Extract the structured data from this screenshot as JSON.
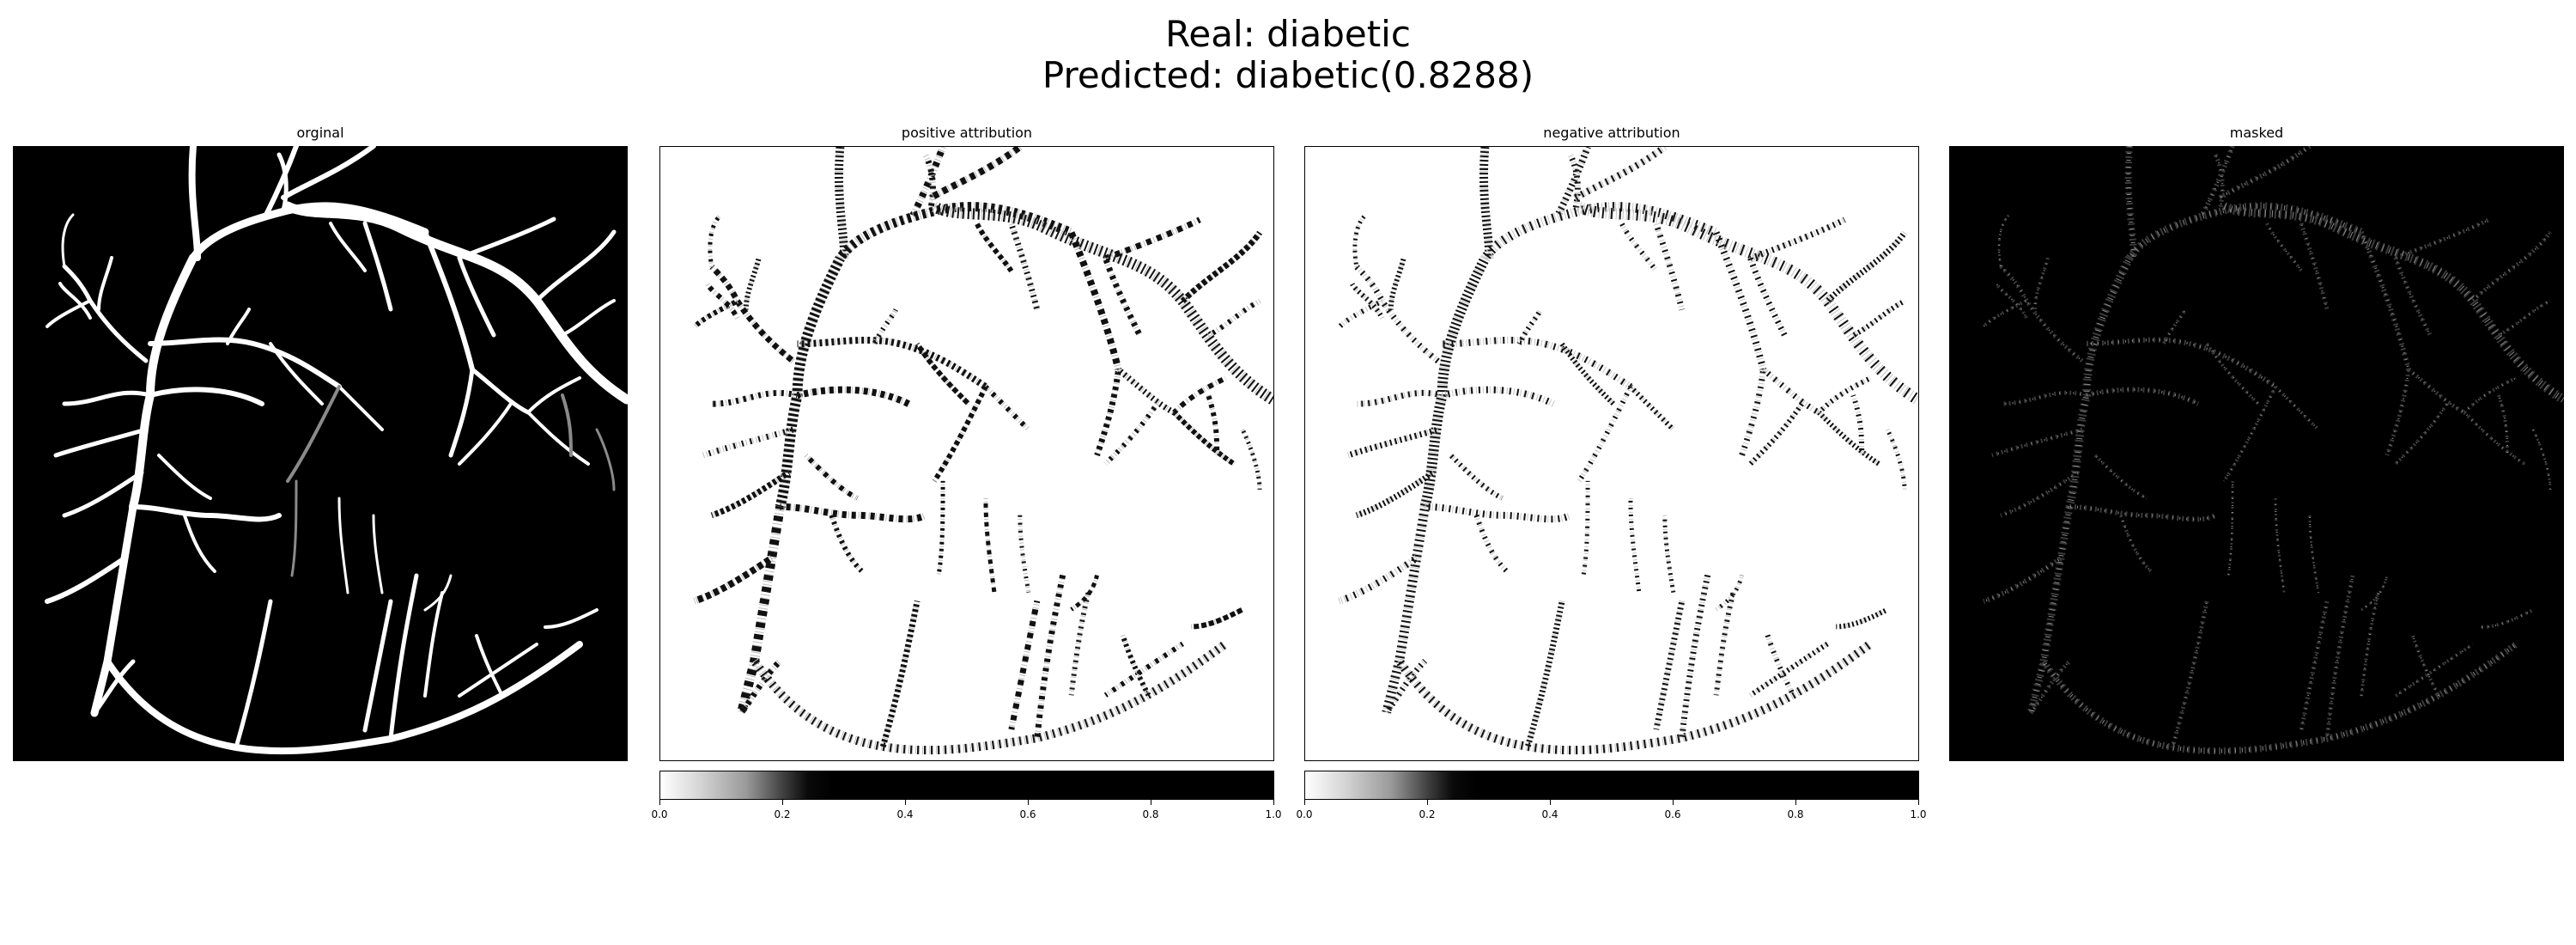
{
  "figure": {
    "title_line1": "Real: diabetic",
    "title_line2": "Predicted: diabetic(0.8288)"
  },
  "panels": [
    {
      "title": "orginal"
    },
    {
      "title": "positive attribution"
    },
    {
      "title": "negative attribution"
    },
    {
      "title": "masked"
    }
  ],
  "colorbar": {
    "ticks": [
      "0.0",
      "0.2",
      "0.4",
      "0.6",
      "0.8",
      "1.0"
    ]
  },
  "colors": {
    "vessel": "#ffffff",
    "background_dark": "#000000",
    "background_light": "#ffffff"
  }
}
